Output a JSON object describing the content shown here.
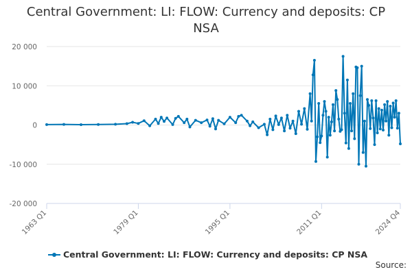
{
  "title_line1": "Central Government: LI: FLOW: Currency and deposits: CP",
  "title_line2": "NSA",
  "source_label": "Source:",
  "colors": {
    "series": "#0076b6",
    "grid": "#e6e6e6",
    "axis": "#ccd6eb"
  },
  "chart_data": {
    "type": "line",
    "title": "Central Government: LI: FLOW: Currency and deposits: CP NSA",
    "xlabel": "",
    "ylabel": "",
    "ylim": [
      -20000,
      20000
    ],
    "y_ticks": [
      20000,
      10000,
      0,
      -10000,
      -20000
    ],
    "y_tick_labels": [
      "20 000",
      "10 000",
      "0",
      "-10 000",
      "-20 000"
    ],
    "x_ticks": [
      "1963 Q1",
      "1979 Q1",
      "1995 Q1",
      "2011 Q1",
      "2024 Q4"
    ],
    "x_range": [
      "1963 Q1",
      "2024 Q4"
    ],
    "grid": true,
    "legend": "bottom",
    "series": [
      {
        "name": "Central Government: LI: FLOW: Currency and deposits: CP NSA",
        "points": [
          [
            "1963 Q1",
            100
          ],
          [
            "1966 Q1",
            150
          ],
          [
            "1969 Q1",
            80
          ],
          [
            "1972 Q1",
            120
          ],
          [
            "1975 Q1",
            200
          ],
          [
            "1977 Q1",
            350
          ],
          [
            "1978 Q1",
            700
          ],
          [
            "1979 Q1",
            400
          ],
          [
            "1980 Q1",
            1100
          ],
          [
            "1981 Q1",
            -200
          ],
          [
            "1982 Q1",
            1500
          ],
          [
            "1982 Q3",
            400
          ],
          [
            "1983 Q1",
            2000
          ],
          [
            "1983 Q3",
            900
          ],
          [
            "1984 Q1",
            1800
          ],
          [
            "1985 Q1",
            100
          ],
          [
            "1985 Q3",
            1700
          ],
          [
            "1986 Q1",
            2200
          ],
          [
            "1987 Q1",
            600
          ],
          [
            "1987 Q3",
            1500
          ],
          [
            "1988 Q1",
            -500
          ],
          [
            "1989 Q1",
            1200
          ],
          [
            "1990 Q1",
            600
          ],
          [
            "1991 Q1",
            1300
          ],
          [
            "1991 Q3",
            -300
          ],
          [
            "1992 Q1",
            1600
          ],
          [
            "1992 Q3",
            -1000
          ],
          [
            "1993 Q1",
            1200
          ],
          [
            "1994 Q1",
            300
          ],
          [
            "1995 Q1",
            2000
          ],
          [
            "1996 Q1",
            600
          ],
          [
            "1996 Q3",
            2200
          ],
          [
            "1997 Q1",
            2500
          ],
          [
            "1998 Q1",
            1000
          ],
          [
            "1998 Q3",
            -200
          ],
          [
            "1999 Q1",
            800
          ],
          [
            "2000 Q1",
            -700
          ],
          [
            "2001 Q1",
            200
          ],
          [
            "2001 Q3",
            -2500
          ],
          [
            "2002 Q1",
            1500
          ],
          [
            "2002 Q3",
            -1200
          ],
          [
            "2003 Q1",
            2300
          ],
          [
            "2003 Q3",
            100
          ],
          [
            "2004 Q1",
            1800
          ],
          [
            "2004 Q3",
            -1500
          ],
          [
            "2005 Q1",
            2500
          ],
          [
            "2005 Q3",
            -800
          ],
          [
            "2006 Q1",
            1000
          ],
          [
            "2006 Q3",
            -2200
          ],
          [
            "2007 Q1",
            3500
          ],
          [
            "2007 Q3",
            200
          ],
          [
            "2008 Q1",
            4200
          ],
          [
            "2008 Q3",
            -1100
          ],
          [
            "2009 Q1",
            8000
          ],
          [
            "2009 Q2",
            1000
          ],
          [
            "2009 Q3",
            12800
          ],
          [
            "2009 Q4",
            16500
          ],
          [
            "2010 Q1",
            -9300
          ],
          [
            "2010 Q2",
            -3000
          ],
          [
            "2010 Q3",
            5500
          ],
          [
            "2010 Q4",
            -4500
          ],
          [
            "2011 Q1",
            -2800
          ],
          [
            "2011 Q2",
            2500
          ],
          [
            "2011 Q3",
            6000
          ],
          [
            "2011 Q4",
            3500
          ],
          [
            "2012 Q1",
            -8200
          ],
          [
            "2012 Q2",
            2000
          ],
          [
            "2012 Q3",
            -2600
          ],
          [
            "2012 Q4",
            800
          ],
          [
            "2013 Q1",
            5200
          ],
          [
            "2013 Q2",
            -1500
          ],
          [
            "2013 Q3",
            8800
          ],
          [
            "2013 Q4",
            6500
          ],
          [
            "2014 Q1",
            1500
          ],
          [
            "2014 Q2",
            -1600
          ],
          [
            "2014 Q3",
            -1200
          ],
          [
            "2014 Q4",
            17500
          ],
          [
            "2015 Q1",
            3000
          ],
          [
            "2015 Q2",
            -4600
          ],
          [
            "2015 Q3",
            11500
          ],
          [
            "2015 Q4",
            -6000
          ],
          [
            "2016 Q1",
            5500
          ],
          [
            "2016 Q2",
            -1500
          ],
          [
            "2016 Q3",
            8000
          ],
          [
            "2016 Q4",
            -3500
          ],
          [
            "2017 Q1",
            14800
          ],
          [
            "2017 Q2",
            14600
          ],
          [
            "2017 Q3",
            -10000
          ],
          [
            "2017 Q4",
            7500
          ],
          [
            "2018 Q1",
            15000
          ],
          [
            "2018 Q2",
            -7000
          ],
          [
            "2018 Q3",
            1000
          ],
          [
            "2018 Q4",
            -10500
          ],
          [
            "2019 Q1",
            6500
          ],
          [
            "2019 Q2",
            5000
          ],
          [
            "2019 Q3",
            -900
          ],
          [
            "2019 Q4",
            6200
          ],
          [
            "2020 Q1",
            1800
          ],
          [
            "2020 Q2",
            -5000
          ],
          [
            "2020 Q3",
            6200
          ],
          [
            "2020 Q4",
            -2000
          ],
          [
            "2021 Q1",
            4200
          ],
          [
            "2021 Q2",
            -1000
          ],
          [
            "2021 Q3",
            3800
          ],
          [
            "2021 Q4",
            -1300
          ],
          [
            "2022 Q1",
            5200
          ],
          [
            "2022 Q2",
            1000
          ],
          [
            "2022 Q3",
            6000
          ],
          [
            "2022 Q4",
            -2600
          ],
          [
            "2023 Q1",
            4800
          ],
          [
            "2023 Q2",
            -700
          ],
          [
            "2023 Q3",
            5600
          ],
          [
            "2023 Q4",
            2000
          ],
          [
            "2024 Q1",
            6200
          ],
          [
            "2024 Q2",
            -800
          ],
          [
            "2024 Q3",
            3000
          ],
          [
            "2024 Q4",
            -4800
          ]
        ]
      }
    ]
  }
}
